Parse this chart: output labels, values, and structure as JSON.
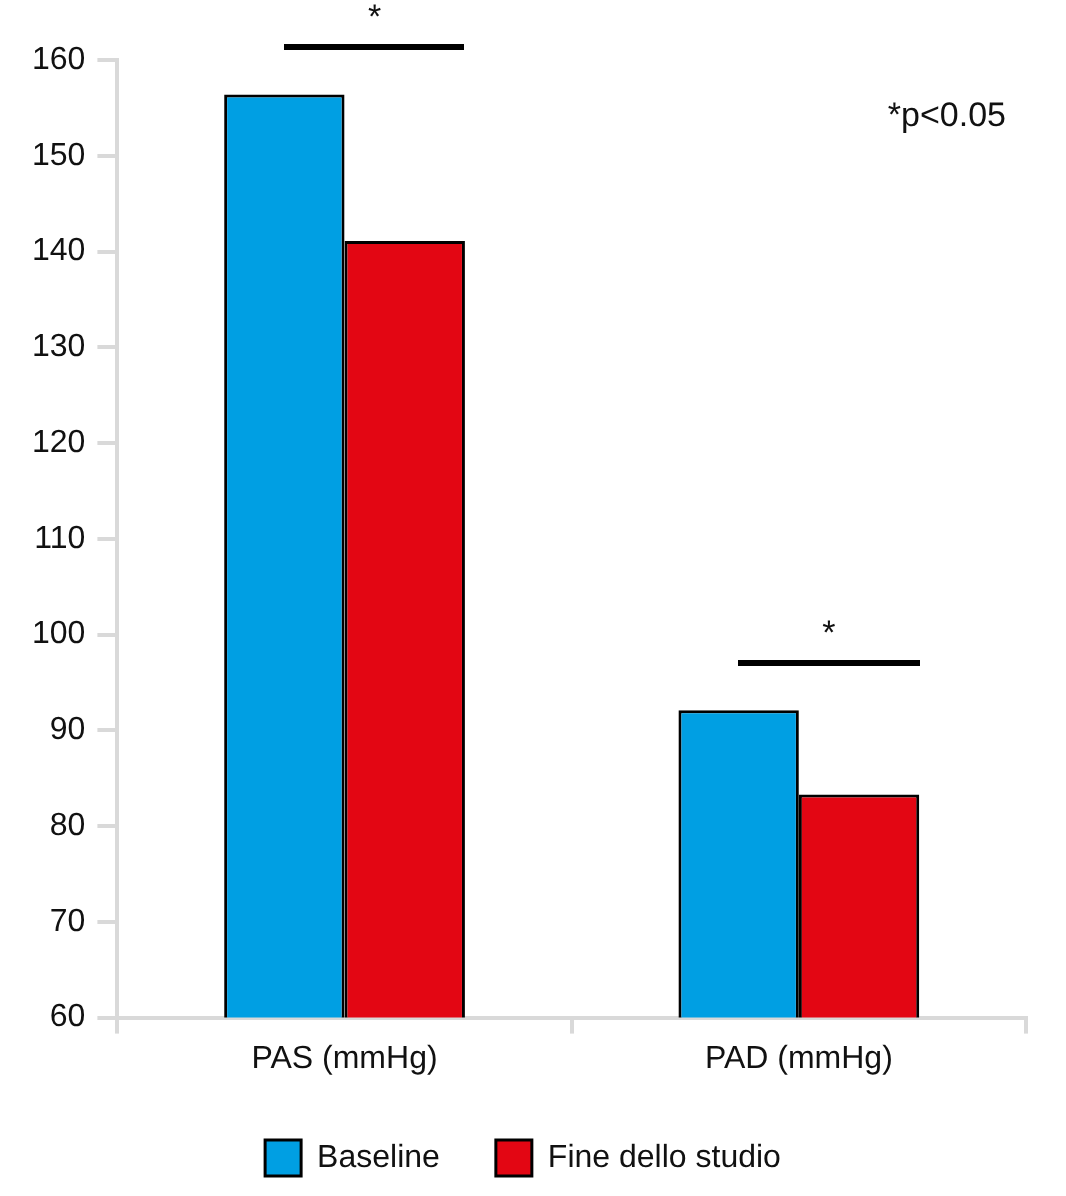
{
  "chart_data": {
    "type": "bar",
    "categories": [
      "PAS (mmHg)",
      "PAD (mmHg)"
    ],
    "series": [
      {
        "name": "Baseline",
        "color": "#009fe3",
        "values": [
          156.4,
          92.1
        ]
      },
      {
        "name": "Fine dello studio",
        "color": "#e30613",
        "values": [
          141.1,
          83.3
        ]
      }
    ],
    "ylim": [
      60,
      160
    ],
    "yticks": [
      60,
      70,
      80,
      90,
      100,
      110,
      120,
      130,
      140,
      150,
      160
    ],
    "legend": "bottom",
    "annotations": [
      "*",
      "*",
      "*p<0.05"
    ]
  }
}
